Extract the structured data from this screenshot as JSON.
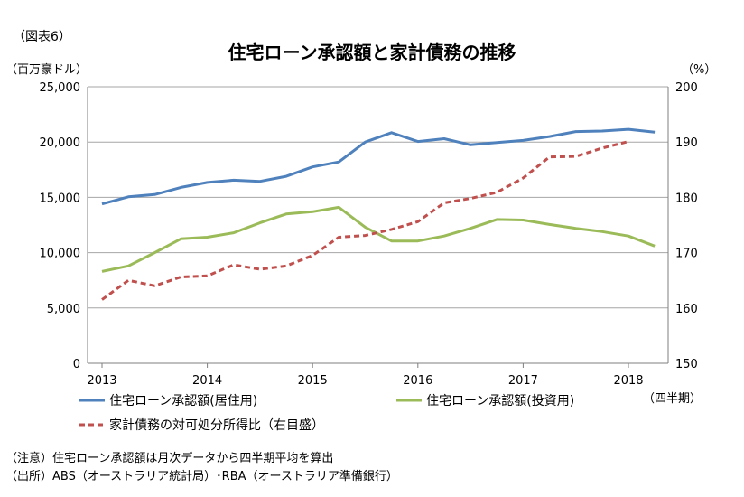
{
  "figure_label": "（図表6）",
  "chart_data": {
    "type": "line",
    "title": "住宅ローン承認額と家計債務の推移",
    "ylabel_left": "（百万豪ドル）",
    "ylabel_right": "（%）",
    "xlabel": "（四半期）",
    "ylim_left": [
      0,
      25000
    ],
    "ylim_right": [
      150,
      200
    ],
    "yticks_left": [
      "0",
      "5,000",
      "10,000",
      "15,000",
      "20,000",
      "25,000"
    ],
    "yticks_right": [
      "150",
      "160",
      "170",
      "180",
      "190",
      "200"
    ],
    "x_tick_labels": [
      "2013",
      "2014",
      "2015",
      "2016",
      "2017",
      "2018"
    ],
    "x_tick_quarter_index": [
      0,
      4,
      8,
      12,
      16,
      20
    ],
    "x_quarters": [
      "2013Q1",
      "2013Q2",
      "2013Q3",
      "2013Q4",
      "2014Q1",
      "2014Q2",
      "2014Q3",
      "2014Q4",
      "2015Q1",
      "2015Q2",
      "2015Q3",
      "2015Q4",
      "2016Q1",
      "2016Q2",
      "2016Q3",
      "2016Q4",
      "2017Q1",
      "2017Q2",
      "2017Q3",
      "2017Q4",
      "2018Q1",
      "2018Q2"
    ],
    "grid": true,
    "legend_position": "bottom",
    "series": [
      {
        "name": "住宅ローン承認額(居住用)",
        "axis": "left",
        "style": "solid",
        "color": "#4f81bd",
        "values": [
          14400,
          15050,
          15250,
          15900,
          16350,
          16550,
          16450,
          16900,
          17750,
          18200,
          20000,
          20850,
          20050,
          20300,
          19750,
          19950,
          20150,
          20500,
          20950,
          21000,
          21150,
          20900
        ]
      },
      {
        "name": "住宅ローン承認額(投資用)",
        "axis": "left",
        "style": "solid",
        "color": "#9bbb59",
        "values": [
          8300,
          8800,
          10000,
          11250,
          11400,
          11800,
          12700,
          13500,
          13700,
          14100,
          12300,
          11050,
          11050,
          11500,
          12200,
          13000,
          12950,
          12550,
          12200,
          11900,
          11500,
          10600
        ]
      },
      {
        "name": "家計債務の対可処分所得比（右目盛）",
        "axis": "right",
        "style": "dashed",
        "color": "#c0504d",
        "values": [
          161.5,
          165.0,
          164.0,
          165.6,
          165.8,
          167.8,
          167.0,
          167.6,
          169.5,
          172.8,
          173.1,
          174.2,
          175.6,
          179.0,
          179.8,
          180.9,
          183.5,
          187.3,
          187.4,
          188.9,
          190.1,
          null
        ]
      }
    ]
  },
  "notes": [
    "（注意）住宅ローン承認額は月次データから四半期平均を算出",
    "（出所）ABS（オーストラリア統計局）･RBA（オーストラリア準備銀行）"
  ]
}
